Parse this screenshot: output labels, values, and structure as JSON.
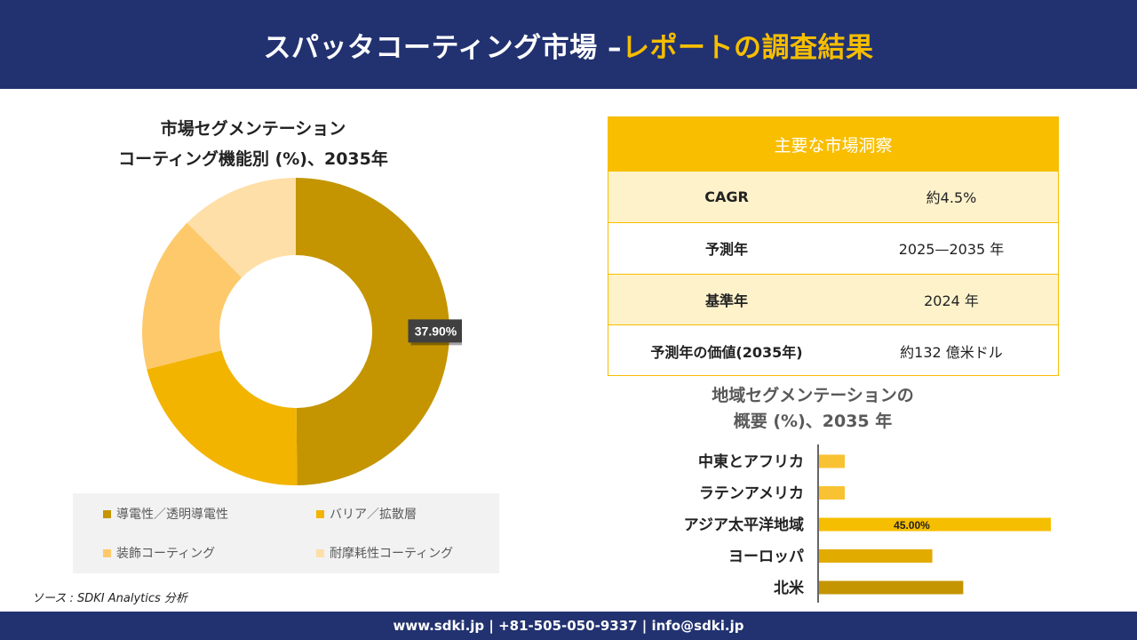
{
  "header": {
    "title_main": "スパッタコーティング市場 –",
    "title_accent": "レポートの調査結果"
  },
  "donut": {
    "title_line1": "市場セグメンテーション",
    "title_line2": "コーティング機能別 (%)、2035年"
  },
  "insights": {
    "title": "主要な市場洞察",
    "rows": [
      {
        "label": "CAGR",
        "value": "約4.5%"
      },
      {
        "label": "予測年",
        "value": "2025—2035 年"
      },
      {
        "label": "基準年",
        "value": "2024 年"
      },
      {
        "label": "予測年の価値(2035年)",
        "value": "約132 億米ドル"
      }
    ]
  },
  "bar": {
    "title_line1": "地域セグメンテーションの",
    "title_line2": "概要 (%)、2035 年"
  },
  "source": "ソース : SDKI Analytics 分析",
  "footer": "www.sdki.jp | +81-505-050-9337 | info@sdki.jp",
  "chart_data": [
    {
      "type": "pie",
      "variant": "donut",
      "title": "市場セグメンテーション コーティング機能別 (%)、2035年",
      "categories": [
        "導電性／透明導電性",
        "バリア／拡散層",
        "装飾コーティング",
        "耐摩耗性コーティング"
      ],
      "values": [
        37.9,
        16.1,
        12.5,
        9.5
      ],
      "colors": [
        "#C49500",
        "#F3B400",
        "#FDC96A",
        "#FEDFA8"
      ],
      "data_labels": [
        "37.90%",
        "",
        "",
        ""
      ],
      "legend_position": "bottom"
    },
    {
      "type": "bar",
      "orientation": "horizontal",
      "title": "地域セグメンテーションの 概要 (%)、2035 年",
      "categories": [
        "中東とアフリカ",
        "ラテンアメリカ",
        "アジア太平洋地域",
        "ヨーロッパ",
        "北米"
      ],
      "values": [
        5.0,
        5.0,
        45.0,
        22.0,
        28.0
      ],
      "colors": [
        "#F9C232",
        "#F9C232",
        "#F6BE00",
        "#E2AB00",
        "#C49500"
      ],
      "data_labels": [
        "",
        "",
        "45.00%",
        "",
        ""
      ],
      "xlim": [
        0,
        50
      ]
    }
  ]
}
